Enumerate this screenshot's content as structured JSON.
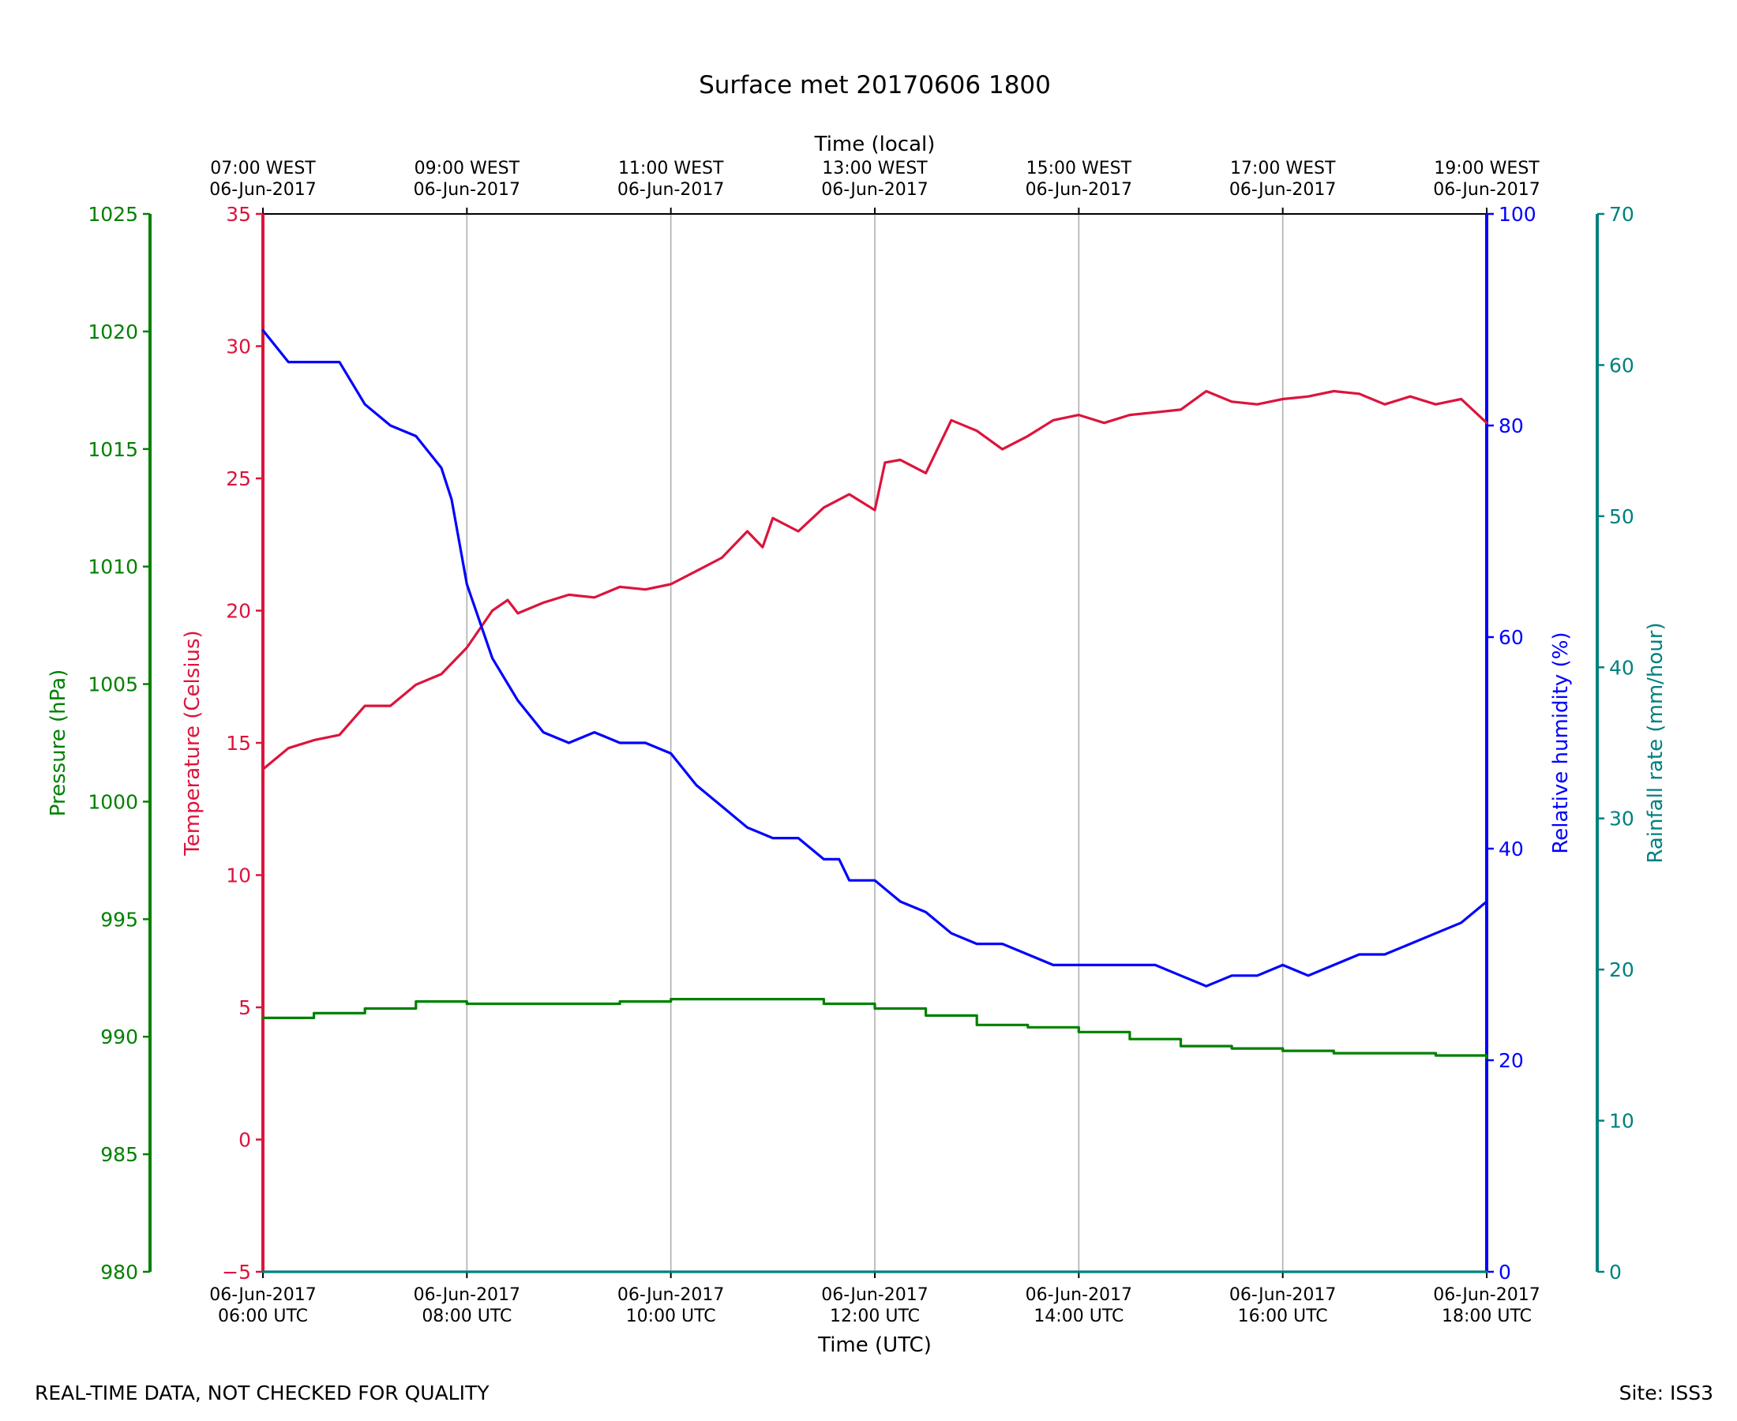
{
  "chart_data": {
    "type": "line",
    "title": "Surface met 20170606 1800",
    "x_top_label": "Time (local)",
    "x_bottom_label": "Time (UTC)",
    "x_range_utc_hours": [
      6,
      18
    ],
    "x_ticks_utc": [
      {
        "hour": 6,
        "line1": "06-Jun-2017",
        "line2": "06:00 UTC"
      },
      {
        "hour": 8,
        "line1": "06-Jun-2017",
        "line2": "08:00 UTC"
      },
      {
        "hour": 10,
        "line1": "06-Jun-2017",
        "line2": "10:00 UTC"
      },
      {
        "hour": 12,
        "line1": "06-Jun-2017",
        "line2": "12:00 UTC"
      },
      {
        "hour": 14,
        "line1": "06-Jun-2017",
        "line2": "14:00 UTC"
      },
      {
        "hour": 16,
        "line1": "06-Jun-2017",
        "line2": "16:00 UTC"
      },
      {
        "hour": 18,
        "line1": "06-Jun-2017",
        "line2": "18:00 UTC"
      }
    ],
    "x_ticks_local": [
      {
        "hour": 6,
        "line1": "07:00 WEST",
        "line2": "06-Jun-2017"
      },
      {
        "hour": 8,
        "line1": "09:00 WEST",
        "line2": "06-Jun-2017"
      },
      {
        "hour": 10,
        "line1": "11:00 WEST",
        "line2": "06-Jun-2017"
      },
      {
        "hour": 12,
        "line1": "13:00 WEST",
        "line2": "06-Jun-2017"
      },
      {
        "hour": 14,
        "line1": "15:00 WEST",
        "line2": "06-Jun-2017"
      },
      {
        "hour": 16,
        "line1": "17:00 WEST",
        "line2": "06-Jun-2017"
      },
      {
        "hour": 18,
        "line1": "19:00 WEST",
        "line2": "06-Jun-2017"
      }
    ],
    "vertical_grid": true,
    "axes": {
      "pressure": {
        "label": "Pressure (hPa)",
        "range": [
          980,
          1025
        ],
        "ticks": [
          980,
          985,
          990,
          995,
          1000,
          1005,
          1010,
          1015,
          1020,
          1025
        ],
        "color": "#008000"
      },
      "temperature": {
        "label": "Temperature (Celsius)",
        "range": [
          -5,
          35
        ],
        "ticks": [
          -5,
          0,
          5,
          10,
          15,
          20,
          25,
          30,
          35
        ],
        "color": "#dc143c"
      },
      "humidity": {
        "label": "Relative humidity (%)",
        "range": [
          0,
          100
        ],
        "ticks": [
          0,
          20,
          40,
          60,
          80,
          100
        ],
        "color": "#0000ff"
      },
      "rainfall": {
        "label": "Rainfall rate (mm/hour)",
        "range": [
          0,
          70
        ],
        "ticks": [
          0,
          10,
          20,
          30,
          40,
          50,
          60,
          70
        ],
        "color": "#008080"
      }
    },
    "series": [
      {
        "name": "Temperature (Celsius)",
        "axis": "temperature",
        "color": "#dc143c",
        "x": [
          6.0,
          6.25,
          6.5,
          6.75,
          7.0,
          7.25,
          7.5,
          7.75,
          8.0,
          8.25,
          8.4,
          8.5,
          8.75,
          9.0,
          9.25,
          9.5,
          9.75,
          10.0,
          10.25,
          10.5,
          10.75,
          10.9,
          11.0,
          11.25,
          11.5,
          11.75,
          12.0,
          12.1,
          12.25,
          12.5,
          12.75,
          13.0,
          13.25,
          13.5,
          13.75,
          14.0,
          14.25,
          14.5,
          14.75,
          15.0,
          15.25,
          15.5,
          15.75,
          16.0,
          16.25,
          16.5,
          16.75,
          17.0,
          17.25,
          17.5,
          17.75,
          18.0
        ],
        "values": [
          14.0,
          14.8,
          15.1,
          15.3,
          16.4,
          16.4,
          17.2,
          17.6,
          18.6,
          20.0,
          20.4,
          19.9,
          20.3,
          20.6,
          20.5,
          20.9,
          20.8,
          21.0,
          21.5,
          22.0,
          23.0,
          22.4,
          23.5,
          23.0,
          23.9,
          24.4,
          23.8,
          25.6,
          25.7,
          25.2,
          27.2,
          26.8,
          26.1,
          26.6,
          27.2,
          27.4,
          27.1,
          27.4,
          27.5,
          27.6,
          28.3,
          27.9,
          27.8,
          28.0,
          28.1,
          28.3,
          28.2,
          27.8,
          28.1,
          27.8,
          28.0,
          27.1
        ],
        "style": "solid"
      },
      {
        "name": "Relative humidity (%)",
        "axis": "humidity",
        "color": "#0000ff",
        "x": [
          6.0,
          6.25,
          6.5,
          6.75,
          7.0,
          7.25,
          7.5,
          7.75,
          7.85,
          8.0,
          8.25,
          8.5,
          8.75,
          9.0,
          9.25,
          9.5,
          9.75,
          10.0,
          10.25,
          10.5,
          10.75,
          11.0,
          11.25,
          11.5,
          11.65,
          11.75,
          12.0,
          12.25,
          12.5,
          12.75,
          13.0,
          13.25,
          13.5,
          13.75,
          14.0,
          14.25,
          14.5,
          14.75,
          15.0,
          15.25,
          15.5,
          15.75,
          16.0,
          16.25,
          16.5,
          16.75,
          17.0,
          17.25,
          17.5,
          17.75,
          18.0
        ],
        "values": [
          89,
          86,
          86,
          86,
          82,
          80,
          79,
          76,
          73,
          65,
          58,
          54,
          51,
          50,
          51,
          50,
          50,
          49,
          46,
          44,
          42,
          41,
          41,
          39,
          39,
          37,
          37,
          35,
          34,
          32,
          31,
          31,
          30,
          29,
          29,
          29,
          29,
          29,
          28,
          27,
          28,
          28,
          29,
          28,
          29,
          30,
          30,
          31,
          32,
          33,
          35
        ],
        "style": "solid"
      },
      {
        "name": "Pressure (hPa)",
        "axis": "pressure",
        "color": "#008000",
        "x": [
          6.0,
          6.5,
          7.0,
          7.5,
          8.0,
          8.5,
          9.0,
          9.5,
          10.0,
          10.5,
          11.0,
          11.5,
          12.0,
          12.5,
          13.0,
          13.5,
          14.0,
          14.5,
          15.0,
          15.5,
          16.0,
          16.5,
          17.0,
          17.5,
          18.0
        ],
        "values": [
          990.8,
          991.0,
          991.2,
          991.5,
          991.4,
          991.4,
          991.4,
          991.5,
          991.6,
          991.6,
          991.6,
          991.4,
          991.2,
          990.9,
          990.5,
          990.4,
          990.2,
          989.9,
          989.6,
          989.5,
          989.4,
          989.3,
          989.3,
          989.2,
          989.1
        ],
        "style": "stepped"
      },
      {
        "name": "Rainfall rate (mm/hour)",
        "axis": "rainfall",
        "color": "#008080",
        "x": [
          6.0,
          18.0
        ],
        "values": [
          0,
          0
        ],
        "style": "solid"
      }
    ]
  },
  "footer": {
    "left": "REAL-TIME DATA, NOT CHECKED FOR QUALITY",
    "right": "Site: ISS3"
  }
}
